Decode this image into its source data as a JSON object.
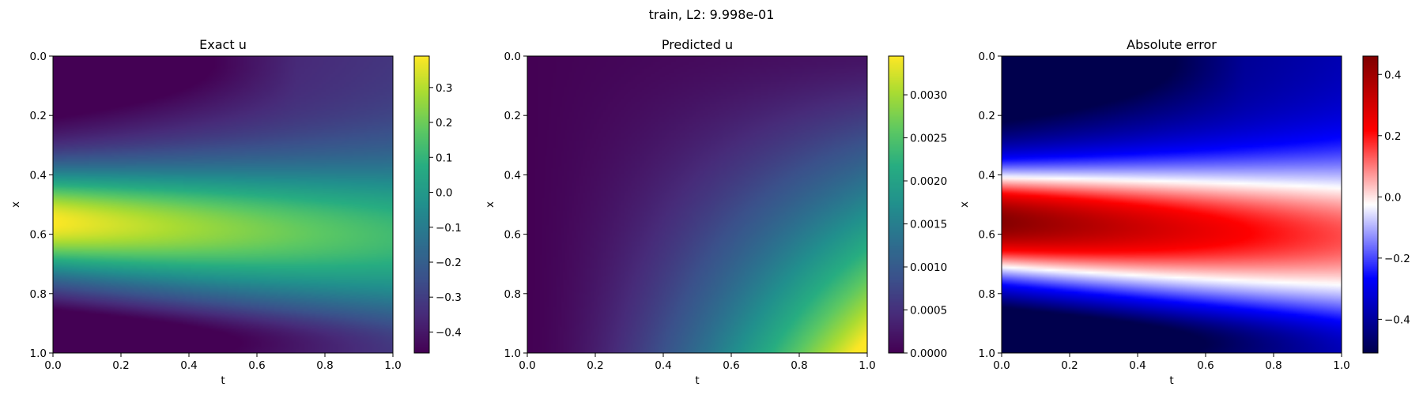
{
  "figure": {
    "suptitle": "train, L2: 9.998e-01"
  },
  "chart_data": [
    {
      "type": "heatmap",
      "title": "Exact u",
      "xlabel": "t",
      "ylabel": "x",
      "xlim": [
        0.0,
        1.0
      ],
      "ylim": [
        1.0,
        0.0
      ],
      "xticks": [
        "0.0",
        "0.2",
        "0.4",
        "0.6",
        "0.8",
        "1.0"
      ],
      "yticks": [
        "0.0",
        "0.2",
        "0.4",
        "0.6",
        "0.8",
        "1.0"
      ],
      "colormap": "viridis",
      "clim": [
        -0.46,
        0.39
      ],
      "colorbar_ticks": [
        {
          "v": 0.3,
          "label": "0.3"
        },
        {
          "v": 0.2,
          "label": "0.2"
        },
        {
          "v": 0.1,
          "label": "0.1"
        },
        {
          "v": 0.0,
          "label": "0.0"
        },
        {
          "v": -0.1,
          "label": "−0.1"
        },
        {
          "v": -0.2,
          "label": "−0.2"
        },
        {
          "v": -0.3,
          "label": "−0.3"
        },
        {
          "v": -0.4,
          "label": "−0.4"
        }
      ]
    },
    {
      "type": "heatmap",
      "title": "Predicted u",
      "xlabel": "t",
      "ylabel": "x",
      "xlim": [
        0.0,
        1.0
      ],
      "ylim": [
        1.0,
        0.0
      ],
      "xticks": [
        "0.0",
        "0.2",
        "0.4",
        "0.6",
        "0.8",
        "1.0"
      ],
      "yticks": [
        "0.0",
        "0.2",
        "0.4",
        "0.6",
        "0.8",
        "1.0"
      ],
      "colormap": "viridis",
      "clim": [
        0.0,
        0.00345
      ],
      "colorbar_ticks": [
        {
          "v": 0.003,
          "label": "0.0030"
        },
        {
          "v": 0.0025,
          "label": "0.0025"
        },
        {
          "v": 0.002,
          "label": "0.0020"
        },
        {
          "v": 0.0015,
          "label": "0.0015"
        },
        {
          "v": 0.001,
          "label": "0.0010"
        },
        {
          "v": 0.0005,
          "label": "0.0005"
        },
        {
          "v": 0.0,
          "label": "0.0000"
        }
      ]
    },
    {
      "type": "heatmap",
      "title": "Absolute error",
      "xlabel": "t",
      "ylabel": "x",
      "xlim": [
        0.0,
        1.0
      ],
      "ylim": [
        1.0,
        0.0
      ],
      "xticks": [
        "0.0",
        "0.2",
        "0.4",
        "0.6",
        "0.8",
        "1.0"
      ],
      "yticks": [
        "0.0",
        "0.2",
        "0.4",
        "0.6",
        "0.8",
        "1.0"
      ],
      "colormap": "seismic",
      "clim": [
        -0.51,
        0.46
      ],
      "colorbar_ticks": [
        {
          "v": 0.4,
          "label": "0.4"
        },
        {
          "v": 0.2,
          "label": "0.2"
        },
        {
          "v": 0.0,
          "label": "0.0"
        },
        {
          "v": -0.2,
          "label": "−0.2"
        },
        {
          "v": -0.4,
          "label": "−0.4"
        }
      ]
    }
  ]
}
